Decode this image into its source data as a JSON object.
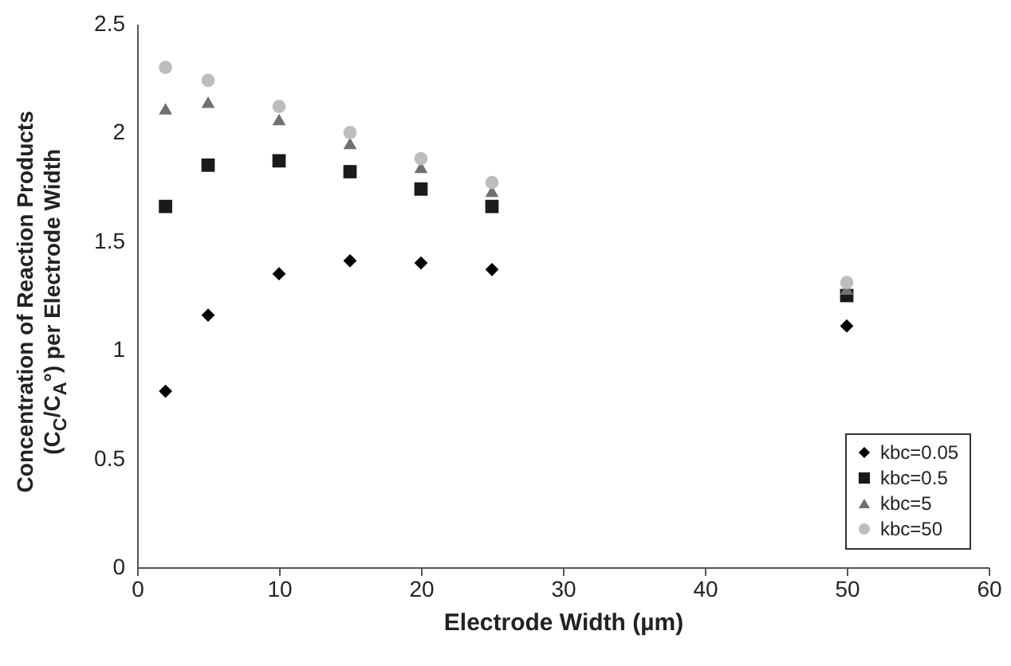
{
  "chart_data": {
    "type": "scatter",
    "xlabel": "Electrode Width (µm)",
    "ylabel": "Concentration of Reaction Products (C$_{C}$/C$_{A}$°) per Electrode Width",
    "x": [
      2,
      5,
      10,
      15,
      20,
      25,
      50
    ],
    "series": [
      {
        "name": "kbc=0.05",
        "color": "#000000",
        "marker": "diamond",
        "values": [
          0.81,
          1.16,
          1.35,
          1.41,
          1.4,
          1.37,
          1.11
        ]
      },
      {
        "name": "kbc=0.5",
        "color": "#1a1a1a",
        "marker": "square",
        "values": [
          1.66,
          1.85,
          1.87,
          1.82,
          1.74,
          1.66,
          1.25
        ]
      },
      {
        "name": "kbc=5",
        "color": "#707070",
        "marker": "triangle",
        "values": [
          2.11,
          2.14,
          2.06,
          1.95,
          1.84,
          1.73,
          1.28
        ]
      },
      {
        "name": "kbc=50",
        "color": "#bdbdbd",
        "marker": "circle",
        "values": [
          2.3,
          2.24,
          2.12,
          2.0,
          1.88,
          1.77,
          1.31
        ]
      }
    ],
    "xlim": [
      0,
      60
    ],
    "xticks": [
      0,
      10,
      20,
      30,
      40,
      50,
      60
    ],
    "ylim": [
      0,
      2.5
    ],
    "yticks": [
      0,
      0.5,
      1,
      1.5,
      2,
      2.5
    ],
    "grid": false,
    "legend": "bottom right"
  }
}
